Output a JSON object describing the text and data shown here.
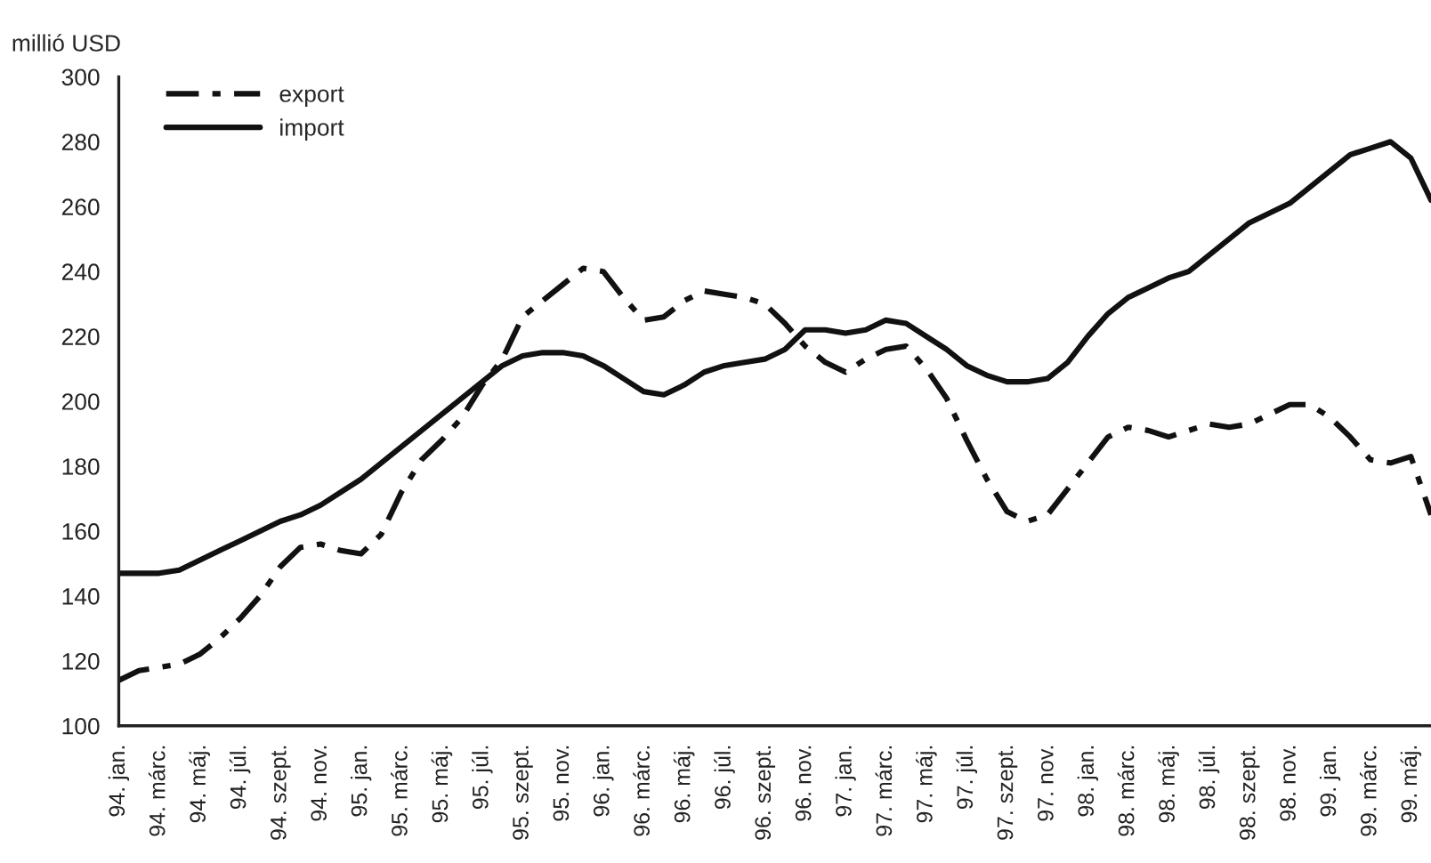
{
  "chart_data": {
    "type": "line",
    "ylabel": "millió USD",
    "categories": [
      "94. jan.",
      null,
      "94. márc.",
      null,
      "94. máj.",
      null,
      "94. júl.",
      null,
      "94. szept.",
      null,
      "94. nov.",
      null,
      "95. jan.",
      null,
      "95. márc.",
      null,
      "95. máj.",
      null,
      "95. júl.",
      null,
      "95. szept.",
      null,
      "95. nov.",
      null,
      "96. jan.",
      null,
      "96. márc.",
      null,
      "96. máj.",
      null,
      "96. júl.",
      null,
      "96. szept.",
      null,
      "96. nov.",
      null,
      "97. jan.",
      null,
      "97. márc.",
      null,
      "97. máj.",
      null,
      "97. júl.",
      null,
      "97. szept.",
      null,
      "97. nov.",
      null,
      "98. jan.",
      null,
      "98. márc.",
      null,
      "98. máj.",
      null,
      "98. júl.",
      null,
      "98. szept.",
      null,
      "98. nov.",
      null,
      "99. jan.",
      null,
      "99. márc.",
      null,
      "99. máj.",
      null
    ],
    "series": [
      {
        "name": "export",
        "color": "#111111",
        "line_style": "dashdot",
        "values": [
          114,
          117,
          118,
          119,
          122,
          127,
          133,
          140,
          149,
          155,
          156,
          154,
          153,
          159,
          172,
          182,
          188,
          195,
          205,
          213,
          226,
          231,
          236,
          241,
          240,
          232,
          225,
          226,
          231,
          234,
          233,
          232,
          230,
          224,
          217,
          212,
          209,
          213,
          216,
          217,
          210,
          201,
          188,
          176,
          166,
          163,
          165,
          173,
          181,
          189,
          192,
          191,
          189,
          191,
          193,
          192,
          193,
          196,
          199,
          199,
          195,
          189,
          182,
          181,
          183,
          165
        ]
      },
      {
        "name": "import",
        "color": "#111111",
        "line_style": "solid",
        "values": [
          147,
          147,
          147,
          148,
          151,
          154,
          157,
          160,
          163,
          165,
          168,
          172,
          176,
          181,
          186,
          191,
          196,
          201,
          206,
          211,
          214,
          215,
          215,
          214,
          211,
          207,
          203,
          202,
          205,
          209,
          211,
          212,
          213,
          216,
          222,
          222,
          221,
          222,
          225,
          224,
          220,
          216,
          211,
          208,
          206,
          206,
          207,
          212,
          220,
          227,
          232,
          235,
          238,
          240,
          245,
          250,
          255,
          258,
          261,
          266,
          271,
          276,
          278,
          280,
          275,
          262
        ]
      }
    ],
    "ylim": [
      100,
      300
    ],
    "yticks": [
      100,
      120,
      140,
      160,
      180,
      200,
      220,
      240,
      260,
      280,
      300
    ],
    "legend": "top left",
    "grid": false
  }
}
